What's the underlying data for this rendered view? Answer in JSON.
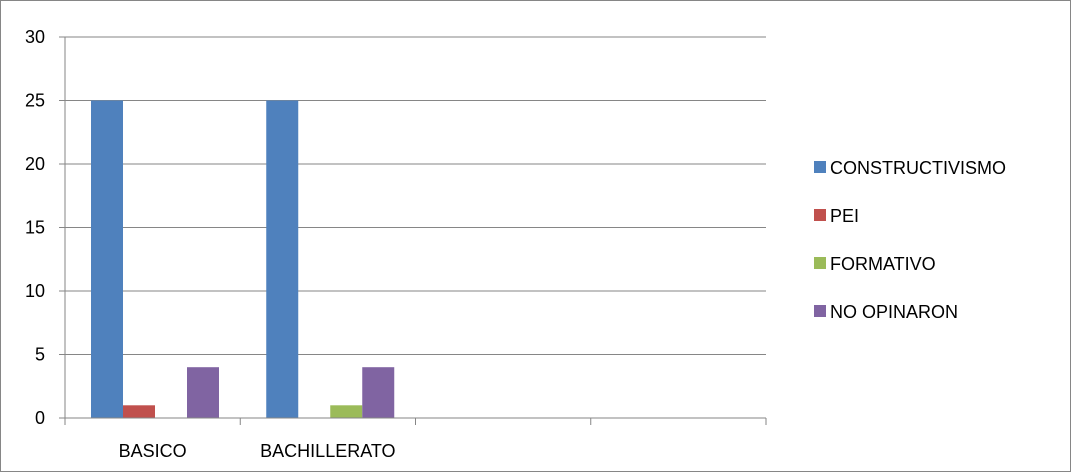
{
  "chart_data": {
    "type": "bar",
    "title": "",
    "xlabel": "",
    "ylabel": "",
    "categories": [
      "BASICO",
      "BACHILLERATO",
      "",
      ""
    ],
    "series": [
      {
        "name": "CONSTRUCTIVISMO",
        "color": "#4F81BD",
        "values": [
          25,
          25,
          null,
          null
        ]
      },
      {
        "name": "PEI",
        "color": "#C0504D",
        "values": [
          1,
          0,
          null,
          null
        ]
      },
      {
        "name": "FORMATIVO",
        "color": "#9BBB59",
        "values": [
          0,
          1,
          null,
          null
        ]
      },
      {
        "name": "NO OPINARON",
        "color": "#8064A2",
        "values": [
          4,
          4,
          null,
          null
        ]
      }
    ],
    "ylim": [
      0,
      30
    ],
    "yticks": [
      0,
      5,
      10,
      15,
      20,
      25,
      30
    ],
    "grid": true,
    "legend_position": "right"
  }
}
